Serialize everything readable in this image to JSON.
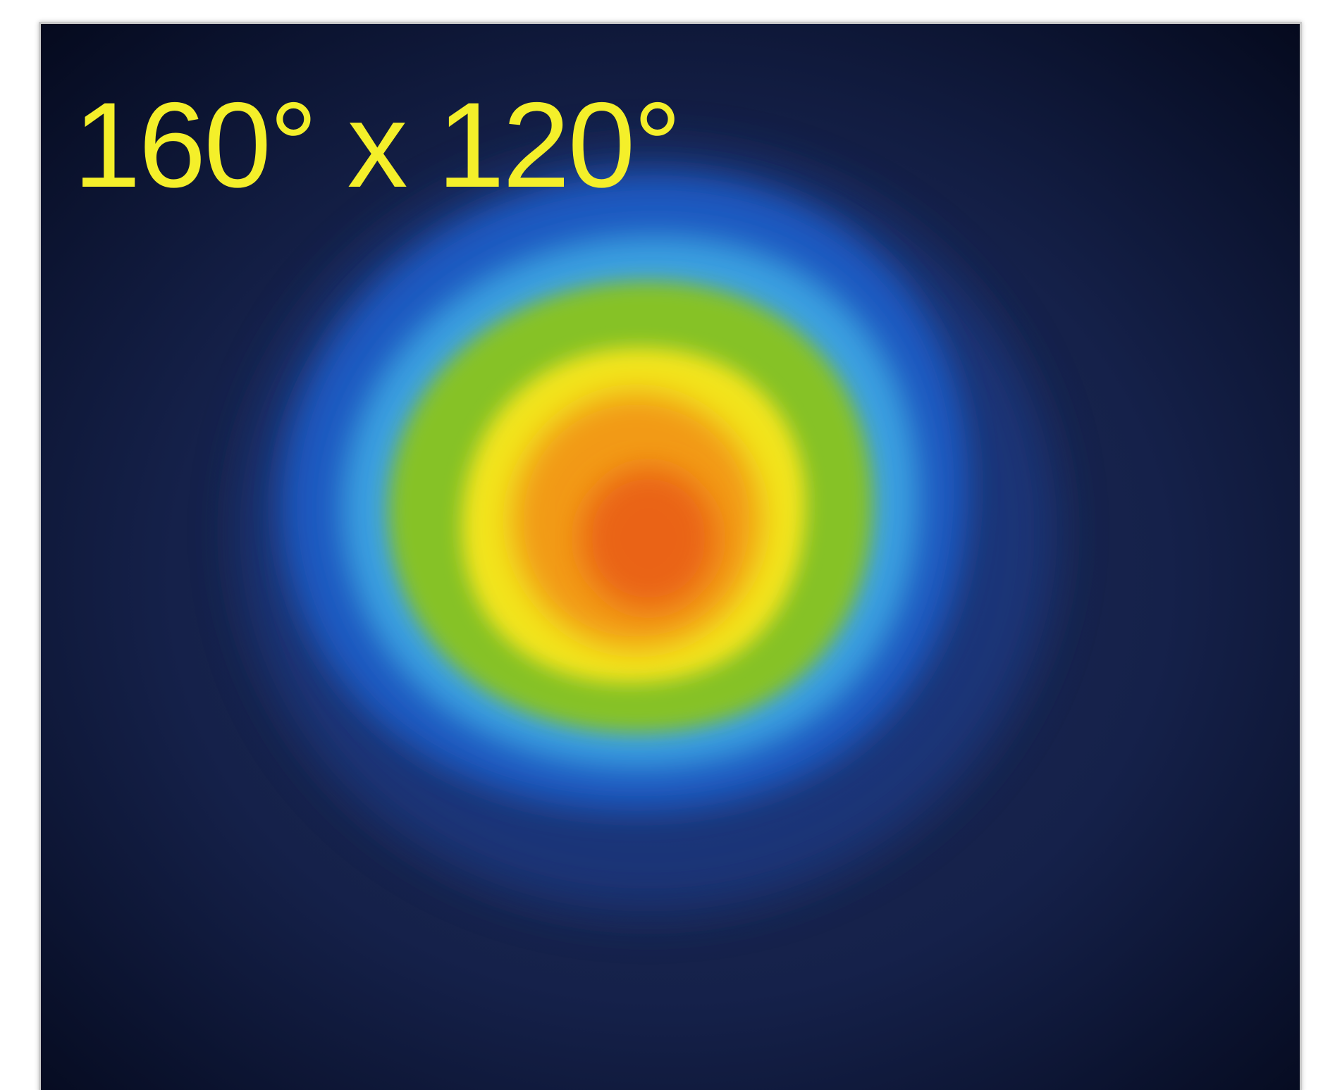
{
  "figure": {
    "field_of_view_label": "160° x 120°"
  },
  "colors": {
    "background_edge": "#050a1e",
    "background_mid": "#1c2a55",
    "outer_blue": "#1f58c0",
    "light_blue": "#3aa0e0",
    "green": "#86c226",
    "yellow": "#f2e41c",
    "orange": "#f29a12",
    "center_red_orange": "#ea6418",
    "label_yellow": "#f4ef2a"
  }
}
